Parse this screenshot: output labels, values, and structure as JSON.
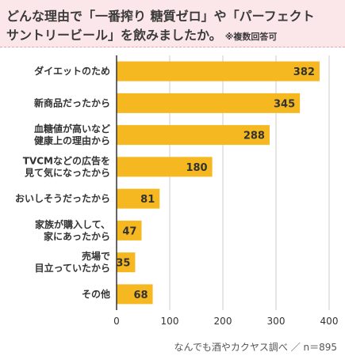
{
  "title": {
    "line1": "どんな理由で「一番搾り 糖質ゼロ」や「パーフェクト",
    "line2": "サントリービール」を飲みましたか。",
    "note": "※複数回答可"
  },
  "source": "なんでも酒やカクヤス調べ ／ n＝895",
  "colors": {
    "bar": "#f5b820",
    "axis": "#333333",
    "grid": "#cccccc",
    "title_bg": "#fbe7e9"
  },
  "chart_data": {
    "type": "bar",
    "orientation": "horizontal",
    "categories": [
      [
        "ダイエットのため"
      ],
      [
        "新商品だったから"
      ],
      [
        "血糖値が高いなど",
        "健康上の理由から"
      ],
      [
        "TVCMなどの広告を",
        "見て気になったから"
      ],
      [
        "おいしそうだったから"
      ],
      [
        "家族が購入して、",
        "家にあったから"
      ],
      [
        "売場で",
        "目立っていたから"
      ],
      [
        "その他"
      ]
    ],
    "values": [
      382,
      345,
      288,
      180,
      81,
      47,
      35,
      68
    ],
    "xlim": [
      0,
      400
    ],
    "xticks": [
      0,
      100,
      200,
      300,
      400
    ],
    "grid": true
  }
}
